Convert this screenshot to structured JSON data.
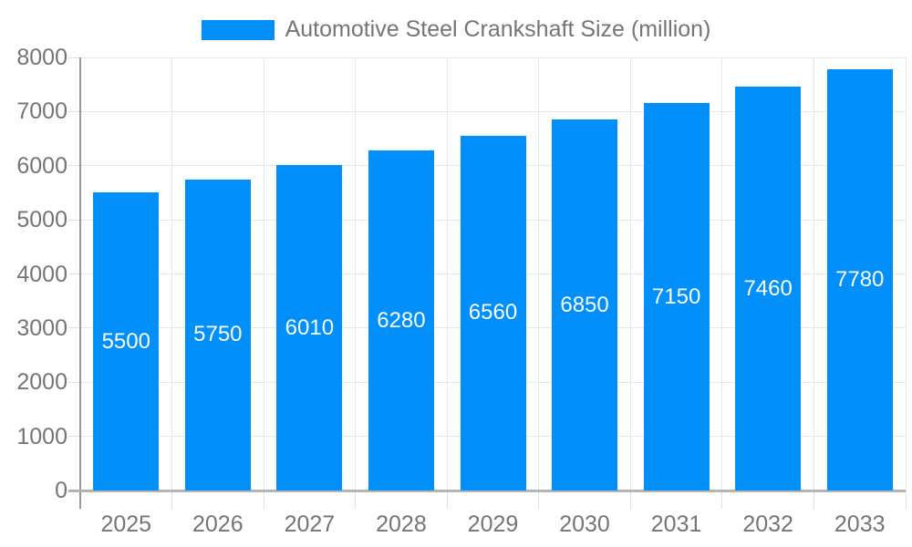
{
  "chart_data": {
    "type": "bar",
    "title": "Automotive Steel Crankshaft Size (million)",
    "series_name": "Automotive Steel Crankshaft Size (million)",
    "categories": [
      "2025",
      "2026",
      "2027",
      "2028",
      "2029",
      "2030",
      "2031",
      "2032",
      "2033"
    ],
    "values": [
      5500,
      5750,
      6010,
      6280,
      6560,
      6850,
      7150,
      7460,
      7780
    ],
    "xlabel": "",
    "ylabel": "",
    "ylim": [
      0,
      8000
    ],
    "ytick_interval": 1000,
    "yticks": [
      0,
      1000,
      2000,
      3000,
      4000,
      5000,
      6000,
      7000,
      8000
    ],
    "grid": true,
    "legend_position": "top",
    "bar_color": "#008FFB",
    "value_label_color": "#ffffff",
    "axis_text_color": "#757575"
  }
}
